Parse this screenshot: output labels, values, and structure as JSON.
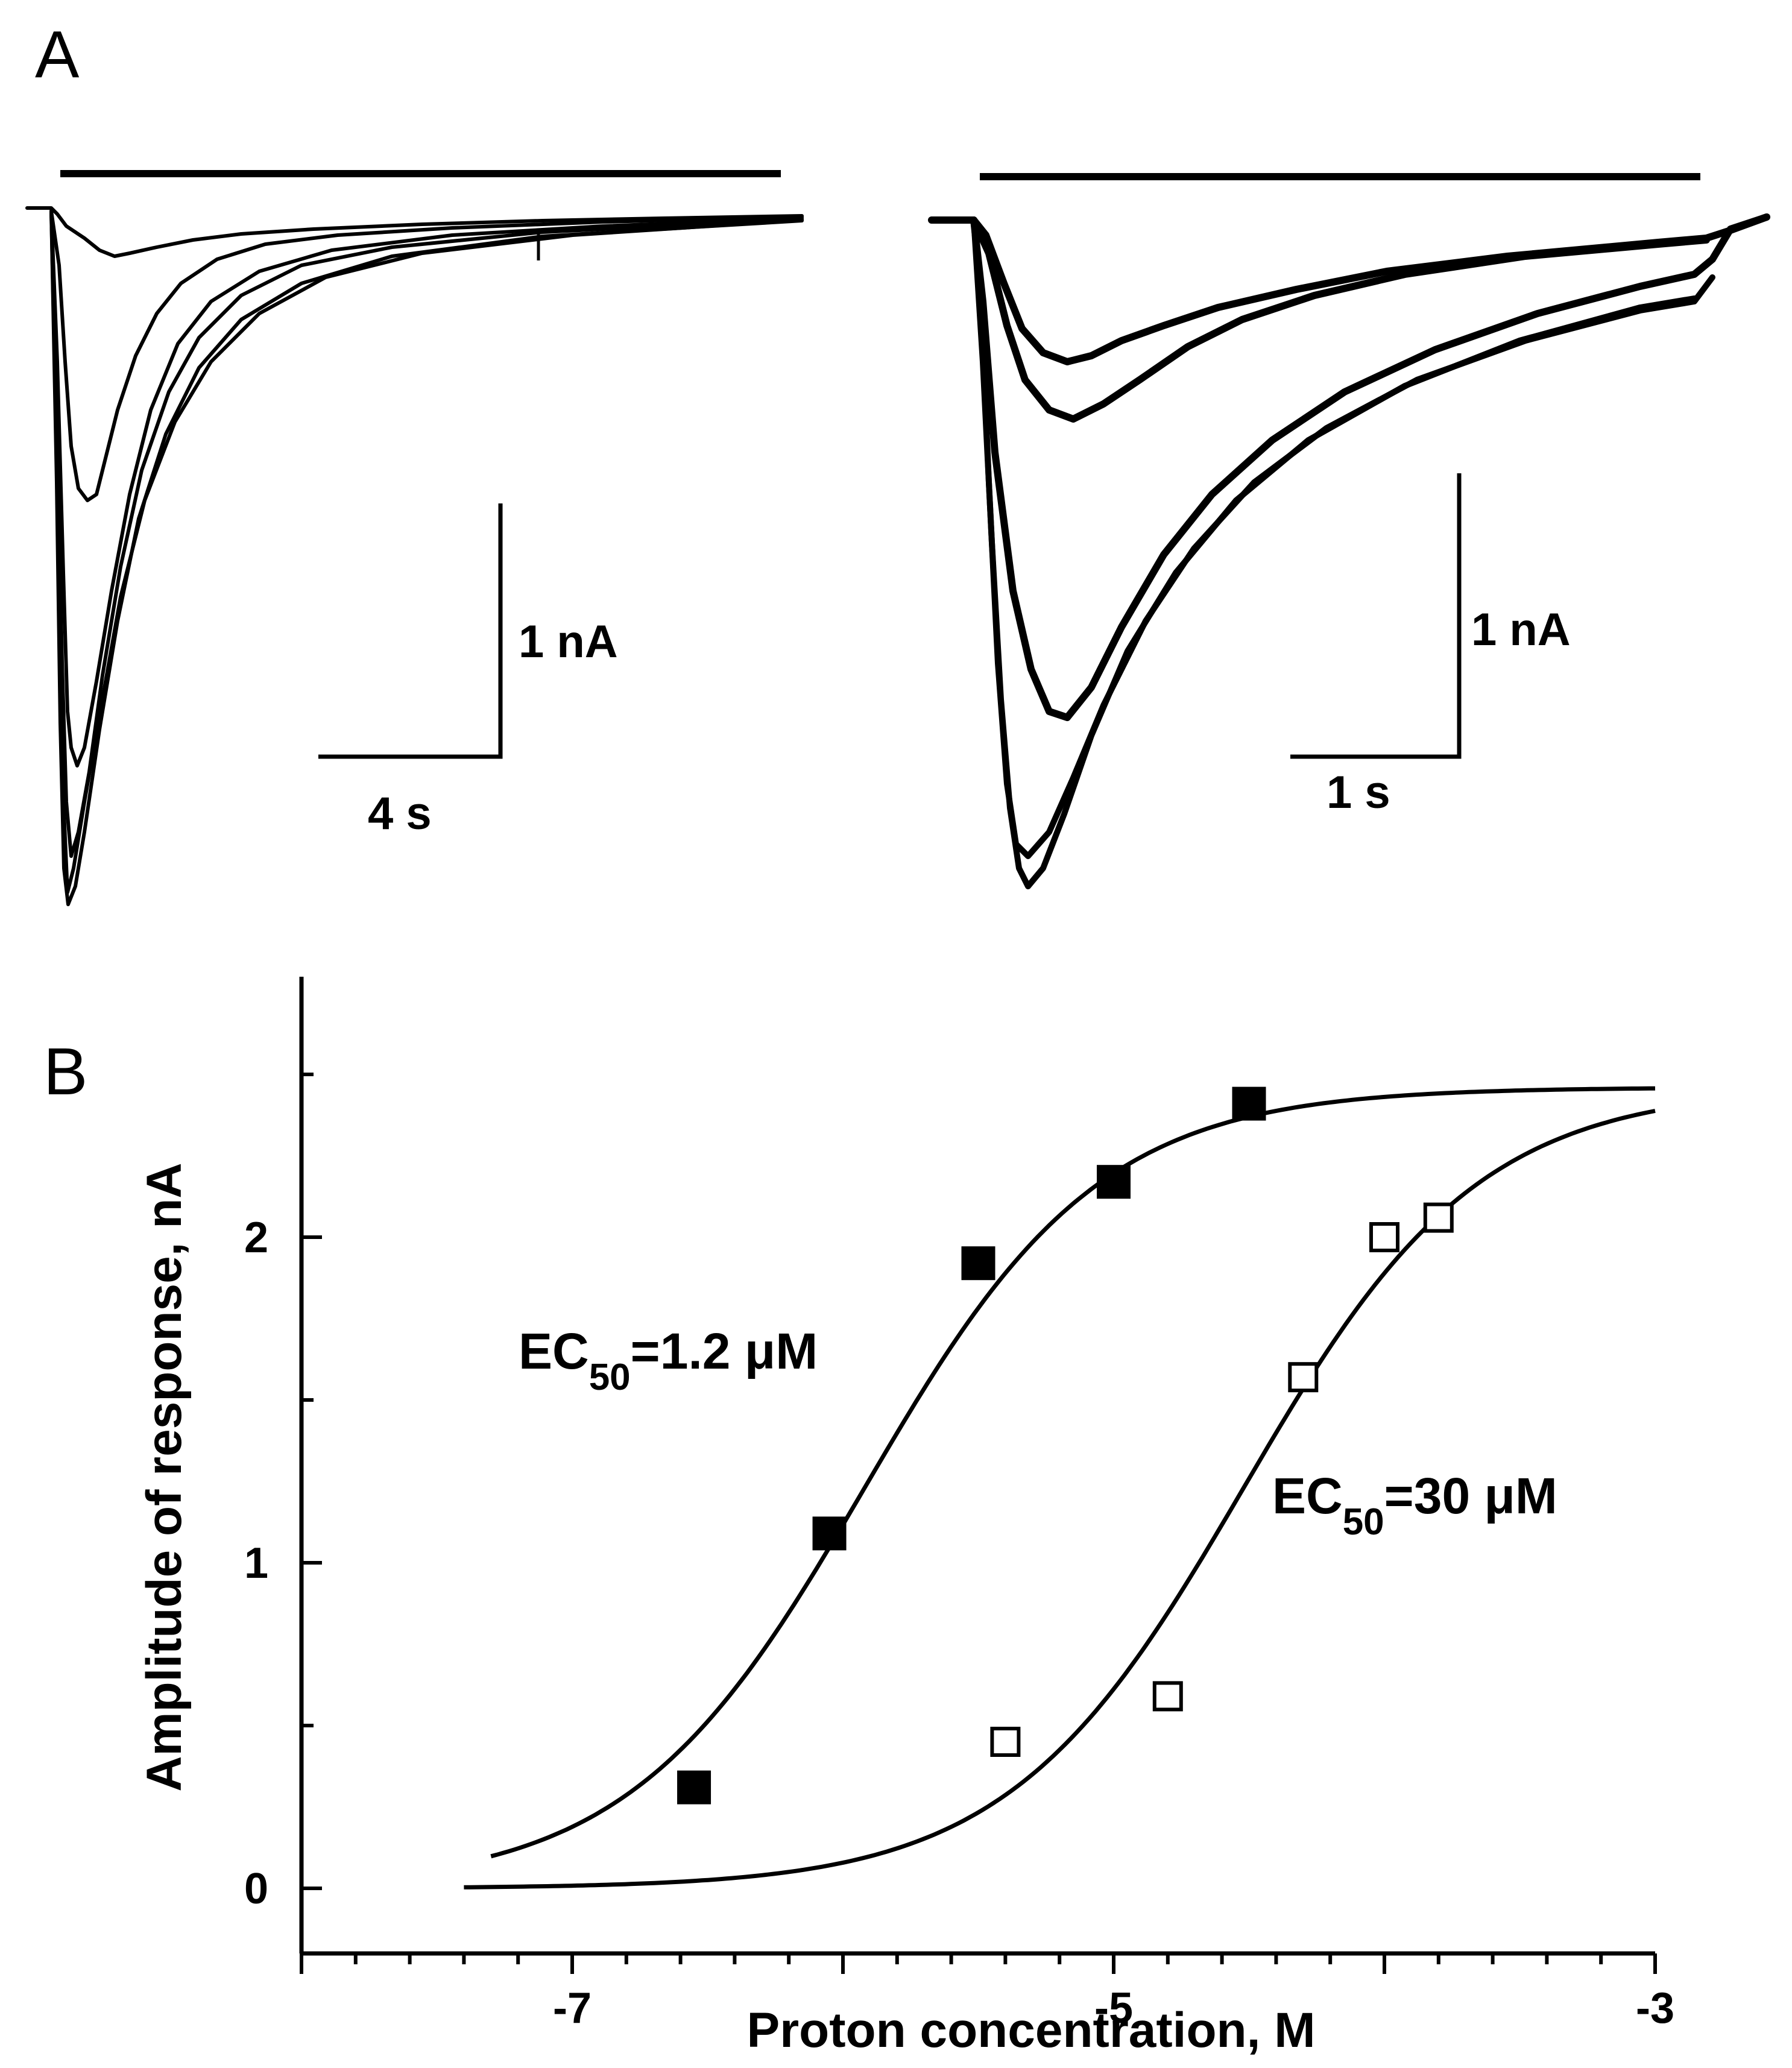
{
  "panel_a": {
    "letter": "A",
    "left": {
      "scale_current": "1 nA",
      "scale_time": "4 s"
    },
    "right": {
      "scale_current": "1 nA",
      "scale_time": "1 s"
    }
  },
  "panel_b": {
    "letter": "B"
  },
  "chart_data": {
    "type": "scatter",
    "title": "",
    "xlabel": "Proton concentration, M",
    "ylabel": "Amplitude of response, nA",
    "xlim": [
      -8,
      -3
    ],
    "ylim": [
      -0.2,
      2.8
    ],
    "xticks": [
      -7,
      -5,
      -3
    ],
    "xtick_labels": [
      "-7",
      "-5",
      "-3"
    ],
    "yticks": [
      0,
      1,
      2
    ],
    "ytick_labels": [
      "0",
      "1",
      "2"
    ],
    "grid": false,
    "series": [
      {
        "name": "filled squares",
        "marker": "filled-square",
        "x": [
          -6.55,
          -6.05,
          -5.5,
          -5.0,
          -4.5
        ],
        "y": [
          0.31,
          1.09,
          1.92,
          2.17,
          2.41
        ],
        "fit": {
          "top": 2.46,
          "log_ec50": -5.92,
          "hill": 1.0
        },
        "fit_range": [
          -7.3,
          -3.0
        ],
        "annotation": {
          "prefix": "EC",
          "subscript": "50",
          "suffix": "=1.2 μM"
        }
      },
      {
        "name": "open squares",
        "marker": "open-square",
        "x": [
          -5.4,
          -4.8,
          -4.3,
          -4.0,
          -3.8
        ],
        "y": [
          0.45,
          0.59,
          1.57,
          2.0,
          2.06
        ],
        "fit": {
          "top": 2.46,
          "log_ec50": -4.52,
          "hill": 1.0
        },
        "fit_range": [
          -7.4,
          -3.0
        ],
        "annotation": {
          "prefix": "EC",
          "subscript": "50",
          "suffix": "=30 μM"
        }
      }
    ]
  }
}
